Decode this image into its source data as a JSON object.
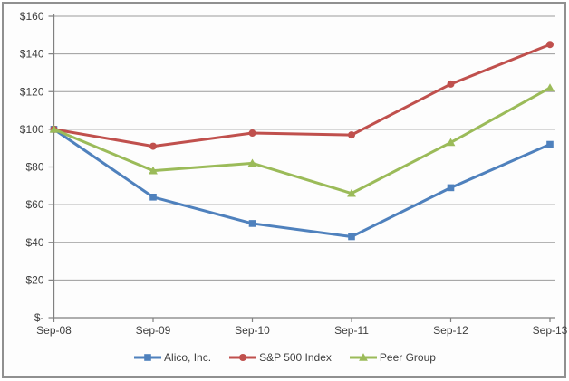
{
  "chart_data": {
    "type": "line",
    "categories": [
      "Sep-08",
      "Sep-09",
      "Sep-10",
      "Sep-11",
      "Sep-12",
      "Sep-13"
    ],
    "series": [
      {
        "name": "Alico, Inc.",
        "color": "#4F81BD",
        "marker": "square",
        "values": [
          100,
          64,
          50,
          43,
          69,
          92
        ]
      },
      {
        "name": "S&P 500 Index",
        "color": "#C0504D",
        "marker": "circle",
        "values": [
          100,
          91,
          98,
          97,
          124,
          145
        ]
      },
      {
        "name": "Peer Group",
        "color": "#9BBB59",
        "marker": "triangle",
        "values": [
          100,
          78,
          82,
          66,
          93,
          122
        ]
      }
    ],
    "y_axis": {
      "min": 0,
      "max": 160,
      "tick_values": [
        0,
        20,
        40,
        60,
        80,
        100,
        120,
        140,
        160
      ],
      "tick_labels": [
        "$-",
        "$20",
        "$40",
        "$60",
        "$80",
        "$100",
        "$120",
        "$140",
        "$160"
      ]
    },
    "grid": true,
    "legend_position": "bottom",
    "styles": {
      "axis_color": "#808080",
      "gridline_color": "#9b9b9b",
      "text_color": "#3f3f3f",
      "plot_background": "#fdfdfd",
      "border_color": "#909090"
    }
  }
}
